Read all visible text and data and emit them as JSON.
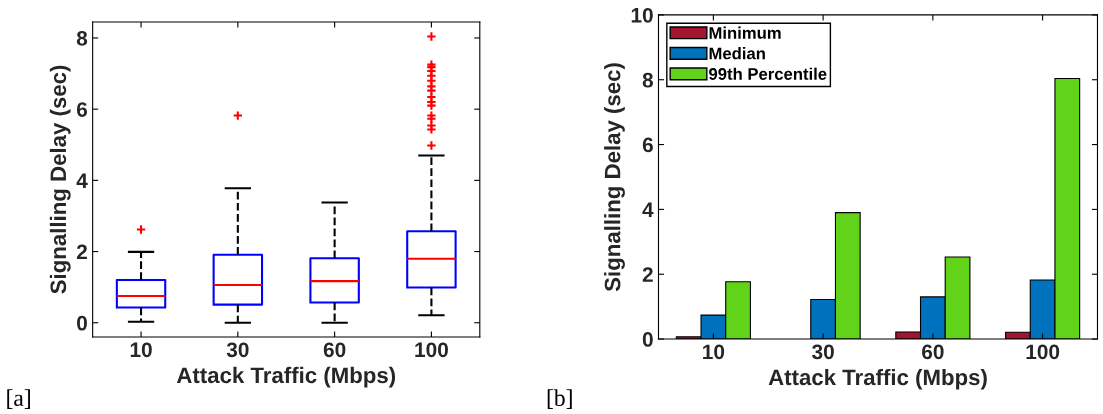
{
  "chart_data": [
    {
      "type": "box",
      "xlabel": "Attack Traffic (Mbps)",
      "ylabel": "Signalling Delay (sec)",
      "categories": [
        "10",
        "30",
        "60",
        "100"
      ],
      "ylim": [
        -0.4,
        8.45
      ],
      "yticks": [
        0,
        2,
        4,
        6,
        8
      ],
      "grid": false,
      "annotations": [
        "[a]"
      ],
      "series": [
        {
          "color": "#0000ff",
          "boxes": [
            {
              "low": 0.03,
              "q1": 0.43,
              "median": 0.75,
              "q3": 1.2,
              "high": 1.99,
              "outliers": [
                2.62
              ]
            },
            {
              "low": 0,
              "q1": 0.51,
              "median": 1.06,
              "q3": 1.91,
              "high": 3.78,
              "outliers": [
                5.82
              ]
            },
            {
              "low": 0,
              "q1": 0.57,
              "median": 1.17,
              "q3": 1.81,
              "high": 3.38
            },
            {
              "low": 0.21,
              "q1": 0.99,
              "median": 1.8,
              "q3": 2.57,
              "high": 4.7,
              "outliers": [
                4.98,
                5.43,
                5.54,
                5.73,
                5.82,
                6.1,
                6.2,
                6.34,
                6.52,
                6.64,
                6.8,
                6.94,
                7.07,
                7.18,
                7.25,
                8.04
              ]
            }
          ]
        }
      ]
    },
    {
      "type": "bar",
      "xlabel": "Attack Traffic (Mbps)",
      "ylabel": "Signalling Delay (sec)",
      "categories": [
        "10",
        "30",
        "60",
        "100"
      ],
      "ylim": [
        0,
        10
      ],
      "yticks": [
        0,
        2,
        4,
        6,
        8,
        10
      ],
      "grid": false,
      "legend": "top left",
      "annotations": [
        "[b]"
      ],
      "series": [
        {
          "name": "Minimum",
          "color": "#a2142f",
          "values": [
            0.07,
            null,
            0.22,
            0.21
          ]
        },
        {
          "name": "Median",
          "color": "#0072bd",
          "values": [
            0.74,
            1.22,
            1.3,
            1.82
          ]
        },
        {
          "name": "99th Percentile",
          "color": "#61d41a",
          "values": [
            1.77,
            3.9,
            2.53,
            8.04
          ]
        }
      ]
    }
  ]
}
